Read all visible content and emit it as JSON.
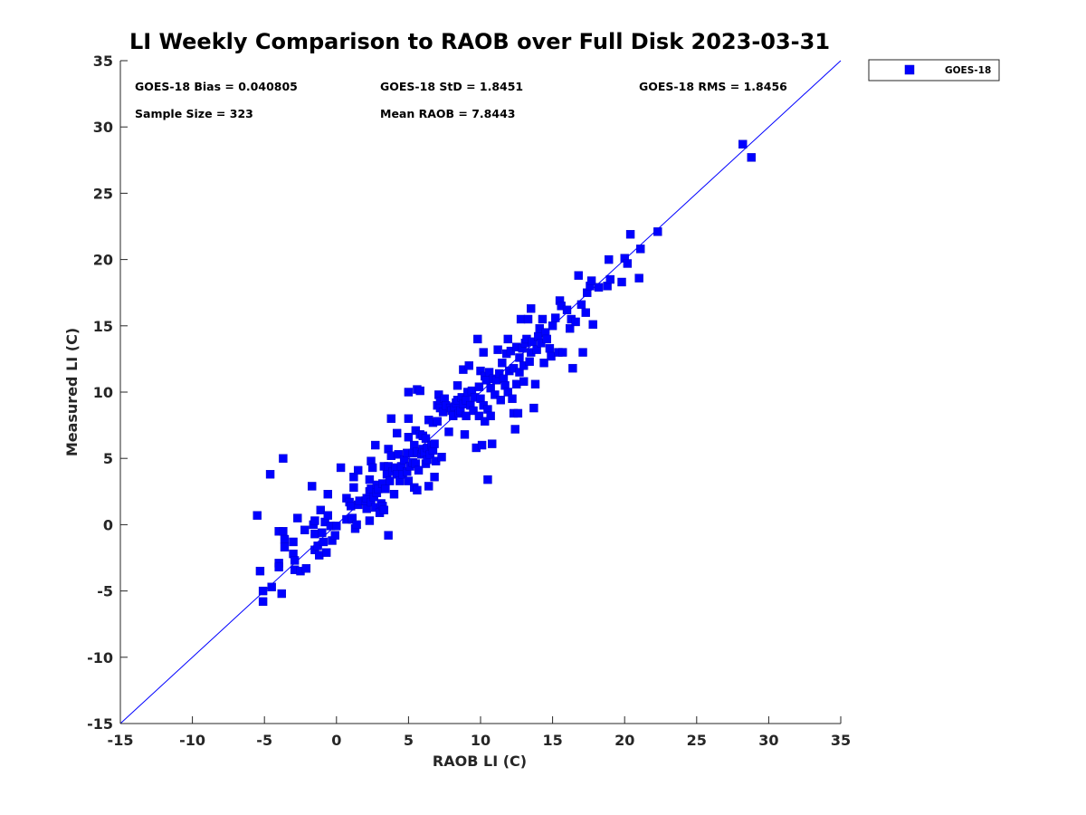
{
  "chart_data": {
    "type": "scatter",
    "title": "LI Weekly Comparison to RAOB over Full Disk 2023-03-31",
    "xlabel": "RAOB LI (C)",
    "ylabel": "Measured LI (C)",
    "xlim": [
      -15,
      35
    ],
    "ylim": [
      -15,
      35
    ],
    "xticks": [
      "-15",
      "-10",
      "-5",
      "0",
      "5",
      "10",
      "15",
      "20",
      "25",
      "30",
      "35"
    ],
    "yticks": [
      "-15",
      "-10",
      "-5",
      "0",
      "5",
      "10",
      "15",
      "20",
      "25",
      "30",
      "35"
    ],
    "grid": false,
    "legend_position": "outside-top-right",
    "reference_line": {
      "name": "one-to-one",
      "x": [
        -15,
        35
      ],
      "y": [
        -15,
        35
      ],
      "color": "#0000ff"
    },
    "stats": {
      "bias": "GOES-18 Bias = 0.040805",
      "std": "GOES-18 StD = 1.8451",
      "rms": "GOES-18 RMS = 1.8456",
      "sample_size": "Sample Size = 323",
      "mean_raob": "Mean RAOB = 7.8443"
    },
    "series": [
      {
        "name": "GOES-18",
        "color": "#0000ff",
        "marker": "square",
        "points": [
          [
            -5.5,
            0.7
          ],
          [
            -5.3,
            -3.5
          ],
          [
            -5.1,
            -5.0
          ],
          [
            -5.1,
            -5.8
          ],
          [
            -4.6,
            3.8
          ],
          [
            -4.5,
            -4.7
          ],
          [
            -4.0,
            -0.5
          ],
          [
            -4.0,
            -2.9
          ],
          [
            -4.0,
            -3.2
          ],
          [
            -3.8,
            -5.2
          ],
          [
            -3.7,
            5.0
          ],
          [
            -3.7,
            -0.5
          ],
          [
            -3.6,
            -1.1
          ],
          [
            -3.6,
            -1.7
          ],
          [
            -3.0,
            -1.3
          ],
          [
            -3.0,
            -2.2
          ],
          [
            -2.9,
            -2.7
          ],
          [
            -2.9,
            -3.4
          ],
          [
            -2.7,
            0.5
          ],
          [
            -2.5,
            -3.5
          ],
          [
            -2.2,
            -0.4
          ],
          [
            -2.1,
            -3.3
          ],
          [
            -1.7,
            2.9
          ],
          [
            -1.6,
            0.0
          ],
          [
            -1.5,
            0.3
          ],
          [
            -1.5,
            -0.7
          ],
          [
            -1.5,
            -1.9
          ],
          [
            -1.3,
            -1.6
          ],
          [
            -1.2,
            -2.3
          ],
          [
            -1.1,
            1.1
          ],
          [
            -1.0,
            -0.6
          ],
          [
            -0.9,
            -1.3
          ],
          [
            -0.8,
            0.2
          ],
          [
            -0.7,
            -2.1
          ],
          [
            -0.6,
            2.3
          ],
          [
            -0.6,
            0.7
          ],
          [
            -0.4,
            -0.1
          ],
          [
            -0.3,
            -1.2
          ],
          [
            -0.1,
            -0.8
          ],
          [
            0.0,
            -0.1
          ],
          [
            0.3,
            4.3
          ],
          [
            0.7,
            2.0
          ],
          [
            0.7,
            0.4
          ],
          [
            0.9,
            1.7
          ],
          [
            1.0,
            1.4
          ],
          [
            1.1,
            0.4
          ],
          [
            1.1,
            0.5
          ],
          [
            1.2,
            3.6
          ],
          [
            1.2,
            2.8
          ],
          [
            1.3,
            -0.3
          ],
          [
            1.4,
            0.0
          ],
          [
            1.5,
            4.1
          ],
          [
            1.5,
            1.5
          ],
          [
            1.6,
            1.8
          ],
          [
            2.0,
            1.8
          ],
          [
            2.1,
            2.0
          ],
          [
            2.1,
            1.2
          ],
          [
            2.3,
            3.4
          ],
          [
            2.3,
            2.5
          ],
          [
            2.3,
            0.3
          ],
          [
            2.4,
            4.8
          ],
          [
            2.4,
            1.7
          ],
          [
            2.4,
            2.7
          ],
          [
            2.5,
            4.3
          ],
          [
            2.6,
            2.1
          ],
          [
            2.7,
            6.0
          ],
          [
            2.7,
            1.3
          ],
          [
            2.8,
            3.0
          ],
          [
            2.8,
            2.4
          ],
          [
            2.9,
            2.7
          ],
          [
            3.0,
            0.9
          ],
          [
            3.1,
            1.6
          ],
          [
            3.2,
            3.1
          ],
          [
            3.2,
            1.4
          ],
          [
            3.3,
            4.4
          ],
          [
            3.3,
            1.1
          ],
          [
            3.4,
            2.7
          ],
          [
            3.5,
            3.8
          ],
          [
            3.6,
            4.4
          ],
          [
            3.6,
            5.7
          ],
          [
            3.6,
            -0.8
          ],
          [
            3.7,
            3.3
          ],
          [
            3.8,
            8.0
          ],
          [
            3.8,
            5.2
          ],
          [
            3.9,
            4.0
          ],
          [
            4.0,
            2.3
          ],
          [
            4.1,
            4.3
          ],
          [
            4.2,
            6.9
          ],
          [
            4.2,
            3.8
          ],
          [
            4.3,
            5.3
          ],
          [
            4.4,
            3.3
          ],
          [
            4.5,
            4.4
          ],
          [
            4.6,
            3.8
          ],
          [
            4.7,
            4.9
          ],
          [
            4.9,
            5.4
          ],
          [
            4.9,
            4.0
          ],
          [
            5.0,
            8.0
          ],
          [
            5.0,
            10.0
          ],
          [
            5.0,
            6.6
          ],
          [
            5.0,
            3.3
          ],
          [
            5.1,
            4.4
          ],
          [
            5.3,
            4.7
          ],
          [
            5.3,
            5.4
          ],
          [
            5.4,
            2.8
          ],
          [
            5.4,
            6.0
          ],
          [
            5.5,
            4.6
          ],
          [
            5.5,
            7.1
          ],
          [
            5.6,
            10.2
          ],
          [
            5.6,
            5.5
          ],
          [
            5.6,
            2.6
          ],
          [
            5.7,
            4.1
          ],
          [
            5.8,
            10.1
          ],
          [
            5.8,
            6.8
          ],
          [
            5.9,
            5.3
          ],
          [
            6.0,
            5.7
          ],
          [
            6.0,
            6.7
          ],
          [
            6.1,
            5.4
          ],
          [
            6.2,
            6.5
          ],
          [
            6.2,
            4.6
          ],
          [
            6.3,
            5.8
          ],
          [
            6.3,
            4.9
          ],
          [
            6.4,
            7.9
          ],
          [
            6.4,
            2.9
          ],
          [
            6.5,
            5.3
          ],
          [
            6.6,
            6.0
          ],
          [
            6.7,
            7.7
          ],
          [
            6.7,
            5.6
          ],
          [
            6.8,
            6.1
          ],
          [
            6.8,
            3.6
          ],
          [
            6.9,
            4.8
          ],
          [
            7.0,
            7.8
          ],
          [
            7.0,
            9.0
          ],
          [
            7.1,
            9.8
          ],
          [
            7.2,
            9.3
          ],
          [
            7.2,
            8.8
          ],
          [
            7.3,
            5.1
          ],
          [
            7.4,
            8.5
          ],
          [
            7.5,
            9.5
          ],
          [
            7.6,
            9.0
          ],
          [
            7.8,
            7.0
          ],
          [
            7.9,
            8.8
          ],
          [
            8.0,
            8.6
          ],
          [
            8.1,
            8.2
          ],
          [
            8.2,
            8.9
          ],
          [
            8.3,
            9.2
          ],
          [
            8.4,
            9.4
          ],
          [
            8.4,
            10.5
          ],
          [
            8.5,
            8.4
          ],
          [
            8.6,
            8.6
          ],
          [
            8.7,
            9.6
          ],
          [
            8.8,
            9.1
          ],
          [
            8.8,
            11.7
          ],
          [
            8.9,
            6.8
          ],
          [
            9.0,
            9.4
          ],
          [
            9.0,
            8.2
          ],
          [
            9.1,
            10.0
          ],
          [
            9.2,
            12.0
          ],
          [
            9.3,
            9.0
          ],
          [
            9.4,
            10.1
          ],
          [
            9.5,
            8.6
          ],
          [
            9.6,
            9.6
          ],
          [
            9.7,
            5.8
          ],
          [
            9.8,
            14.0
          ],
          [
            9.9,
            10.4
          ],
          [
            9.9,
            8.2
          ],
          [
            10.0,
            11.6
          ],
          [
            10.0,
            9.5
          ],
          [
            10.1,
            6.0
          ],
          [
            10.2,
            13.0
          ],
          [
            10.2,
            9.0
          ],
          [
            10.3,
            11.2
          ],
          [
            10.3,
            7.8
          ],
          [
            10.4,
            10.9
          ],
          [
            10.5,
            3.4
          ],
          [
            10.5,
            8.7
          ],
          [
            10.6,
            11.5
          ],
          [
            10.7,
            10.3
          ],
          [
            10.7,
            8.2
          ],
          [
            10.8,
            6.1
          ],
          [
            10.9,
            11.0
          ],
          [
            11.0,
            9.8
          ],
          [
            11.1,
            10.9
          ],
          [
            11.2,
            13.2
          ],
          [
            11.3,
            11.4
          ],
          [
            11.4,
            9.4
          ],
          [
            11.5,
            12.2
          ],
          [
            11.6,
            11.0
          ],
          [
            11.7,
            10.5
          ],
          [
            11.8,
            12.9
          ],
          [
            11.9,
            14.0
          ],
          [
            11.9,
            10.0
          ],
          [
            12.0,
            11.6
          ],
          [
            12.1,
            13.1
          ],
          [
            12.2,
            9.5
          ],
          [
            12.3,
            8.4
          ],
          [
            12.3,
            11.8
          ],
          [
            12.4,
            7.2
          ],
          [
            12.5,
            13.4
          ],
          [
            12.5,
            10.6
          ],
          [
            12.6,
            8.4
          ],
          [
            12.7,
            12.6
          ],
          [
            12.7,
            11.5
          ],
          [
            12.8,
            15.5
          ],
          [
            12.9,
            13.3
          ],
          [
            13.0,
            12.0
          ],
          [
            13.0,
            10.8
          ],
          [
            13.1,
            13.7
          ],
          [
            13.2,
            14.0
          ],
          [
            13.3,
            15.5
          ],
          [
            13.4,
            12.3
          ],
          [
            13.5,
            13.0
          ],
          [
            13.5,
            16.3
          ],
          [
            13.6,
            13.8
          ],
          [
            13.7,
            8.8
          ],
          [
            13.8,
            10.6
          ],
          [
            13.9,
            13.2
          ],
          [
            14.0,
            14.2
          ],
          [
            14.1,
            14.8
          ],
          [
            14.2,
            13.7
          ],
          [
            14.3,
            15.5
          ],
          [
            14.4,
            12.2
          ],
          [
            14.5,
            14.5
          ],
          [
            14.6,
            14.0
          ],
          [
            14.8,
            13.3
          ],
          [
            14.9,
            12.7
          ],
          [
            15.0,
            15.0
          ],
          [
            15.2,
            15.6
          ],
          [
            15.4,
            13.0
          ],
          [
            15.5,
            16.9
          ],
          [
            15.6,
            16.5
          ],
          [
            15.7,
            13.0
          ],
          [
            16.0,
            16.2
          ],
          [
            16.2,
            14.8
          ],
          [
            16.3,
            15.5
          ],
          [
            16.4,
            11.8
          ],
          [
            16.6,
            15.3
          ],
          [
            16.8,
            18.8
          ],
          [
            17.0,
            16.6
          ],
          [
            17.1,
            13.0
          ],
          [
            17.3,
            16.0
          ],
          [
            17.4,
            17.5
          ],
          [
            17.6,
            18.0
          ],
          [
            17.7,
            18.4
          ],
          [
            17.8,
            15.1
          ],
          [
            18.2,
            17.9
          ],
          [
            18.8,
            18.0
          ],
          [
            18.9,
            20.0
          ],
          [
            19.0,
            18.5
          ],
          [
            19.8,
            18.3
          ],
          [
            20.0,
            20.1
          ],
          [
            20.2,
            19.7
          ],
          [
            20.4,
            21.9
          ],
          [
            21.1,
            20.8
          ],
          [
            21.0,
            18.6
          ],
          [
            22.3,
            22.1
          ],
          [
            28.2,
            28.7
          ],
          [
            28.8,
            27.7
          ]
        ]
      }
    ]
  }
}
